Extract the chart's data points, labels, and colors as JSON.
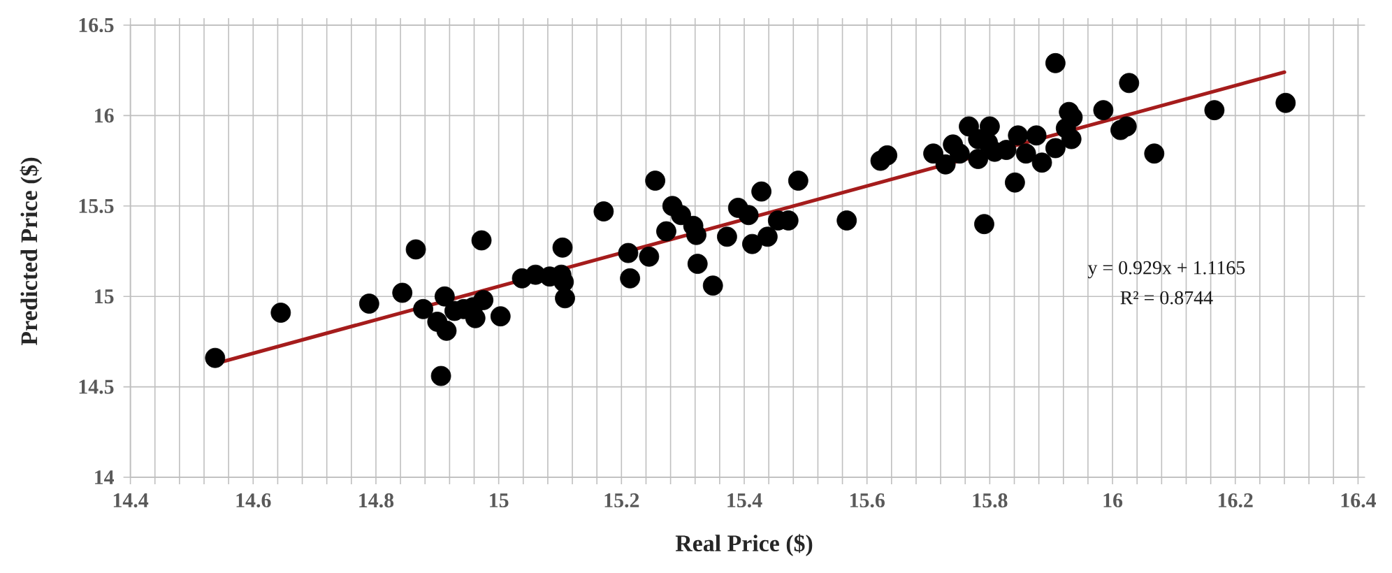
{
  "chart_data": {
    "type": "scatter",
    "xlabel": "Real Price ($)",
    "ylabel": "Predicted Price ($)",
    "xlim": [
      14.4,
      16.4
    ],
    "ylim": [
      14,
      16.5
    ],
    "xticks": [
      14.4,
      {
        "value": 14.44,
        "label": null
      },
      {
        "value": 14.48,
        "label": null
      },
      {
        "value": 14.52,
        "label": null
      },
      {
        "value": 14.56,
        "label": null
      },
      14.6,
      {
        "value": 14.64,
        "label": null
      },
      {
        "value": 14.68,
        "label": null
      },
      {
        "value": 14.72,
        "label": null
      },
      {
        "value": 14.76,
        "label": null
      },
      14.8,
      {
        "value": 14.84,
        "label": null
      },
      {
        "value": 14.88,
        "label": null
      },
      {
        "value": 14.92,
        "label": null
      },
      {
        "value": 14.96,
        "label": null
      },
      15,
      {
        "value": 15.04,
        "label": null
      },
      {
        "value": 15.08,
        "label": null
      },
      {
        "value": 15.12,
        "label": null
      },
      {
        "value": 15.16,
        "label": null
      },
      15.2,
      {
        "value": 15.24,
        "label": null
      },
      {
        "value": 15.28,
        "label": null
      },
      {
        "value": 15.32,
        "label": null
      },
      {
        "value": 15.36,
        "label": null
      },
      15.4,
      {
        "value": 15.44,
        "label": null
      },
      {
        "value": 15.48,
        "label": null
      },
      {
        "value": 15.52,
        "label": null
      },
      {
        "value": 15.56,
        "label": null
      },
      15.6,
      {
        "value": 15.64,
        "label": null
      },
      {
        "value": 15.68,
        "label": null
      },
      {
        "value": 15.72,
        "label": null
      },
      {
        "value": 15.76,
        "label": null
      },
      15.8,
      {
        "value": 15.84,
        "label": null
      },
      {
        "value": 15.88,
        "label": null
      },
      {
        "value": 15.92,
        "label": null
      },
      {
        "value": 15.96,
        "label": null
      },
      16,
      {
        "value": 16.04,
        "label": null
      },
      {
        "value": 16.08,
        "label": null
      },
      {
        "value": 16.12,
        "label": null
      },
      {
        "value": 16.16,
        "label": null
      },
      16.2,
      {
        "value": 16.24,
        "label": null
      },
      {
        "value": 16.28,
        "label": null
      },
      {
        "value": 16.32,
        "label": null
      },
      {
        "value": 16.36,
        "label": null
      },
      16.4
    ],
    "yticks": [
      14,
      14.5,
      15,
      15.5,
      16,
      16.5
    ],
    "grid": true,
    "marker": "circle",
    "series": [
      {
        "color": "#000000",
        "x": [
          14.538,
          14.645,
          14.789,
          14.843,
          14.865,
          14.877,
          14.912,
          14.9,
          14.915,
          14.906,
          14.928,
          14.943,
          14.958,
          14.962,
          14.972,
          14.975,
          15.003,
          15.038,
          15.06,
          15.083,
          15.102,
          15.106,
          15.104,
          15.108,
          15.171,
          15.211,
          15.214,
          15.245,
          15.255,
          15.273,
          15.283,
          15.297,
          15.317,
          15.322,
          15.324,
          15.349,
          15.372,
          15.39,
          15.407,
          15.413,
          15.428,
          15.438,
          15.455,
          15.472,
          15.488,
          15.567,
          15.622,
          15.633,
          15.708,
          15.728,
          15.74,
          15.751,
          15.766,
          15.781,
          15.781,
          15.8,
          15.797,
          15.808,
          15.791,
          15.827,
          15.846,
          15.841,
          15.859,
          15.876,
          15.885,
          15.907,
          15.907,
          15.929,
          15.935,
          15.924,
          15.933,
          15.985,
          16.013,
          16.023,
          16.027,
          16.068,
          16.166,
          16.282
        ],
        "values": [
          14.66,
          14.91,
          14.96,
          15.02,
          15.26,
          14.93,
          15.0,
          14.86,
          14.81,
          14.56,
          14.92,
          14.93,
          14.94,
          14.88,
          15.31,
          14.98,
          14.89,
          15.1,
          15.12,
          15.11,
          15.12,
          15.08,
          15.27,
          14.99,
          15.47,
          15.24,
          15.1,
          15.22,
          15.64,
          15.36,
          15.5,
          15.45,
          15.39,
          15.34,
          15.18,
          15.06,
          15.33,
          15.49,
          15.45,
          15.29,
          15.58,
          15.33,
          15.42,
          15.42,
          15.64,
          15.42,
          15.75,
          15.78,
          15.79,
          15.73,
          15.84,
          15.79,
          15.94,
          15.87,
          15.76,
          15.94,
          15.85,
          15.8,
          15.4,
          15.81,
          15.89,
          15.63,
          15.79,
          15.89,
          15.74,
          16.29,
          15.82,
          16.02,
          15.99,
          15.93,
          15.87,
          16.03,
          15.92,
          15.94,
          16.18,
          15.79,
          16.03,
          16.07
        ]
      },
      {
        "type": "line",
        "color": "#a51c1c",
        "marker": "none",
        "x": [
          14.54,
          16.28
        ],
        "values": [
          14.63,
          16.24
        ]
      }
    ],
    "annotations": [
      "y = 0.929x + 1.1165",
      "R² = 0.8744"
    ]
  }
}
